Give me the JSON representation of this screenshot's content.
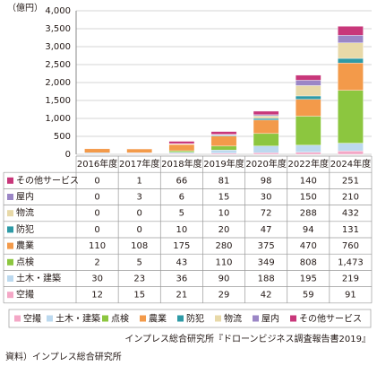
{
  "chart_data": {
    "type": "stacked_bar",
    "y_label": "（億円）",
    "categories": [
      "2016年度",
      "2017年度",
      "2018年度",
      "2019年度",
      "2020年度",
      "2022年度",
      "2024年度"
    ],
    "series": [
      {
        "name": "空撮",
        "color": "#f4a7c6",
        "values": [
          12,
          15,
          21,
          29,
          42,
          59,
          91
        ]
      },
      {
        "name": "土木・建築",
        "color": "#bcd9ef",
        "values": [
          30,
          23,
          36,
          90,
          188,
          195,
          219
        ]
      },
      {
        "name": "点検",
        "color": "#8cc63f",
        "values": [
          2,
          5,
          43,
          110,
          349,
          808,
          1473
        ],
        "value_labels": [
          "2",
          "5",
          "43",
          "110",
          "349",
          "808",
          "1,473"
        ]
      },
      {
        "name": "農業",
        "color": "#f39a4a",
        "values": [
          110,
          108,
          175,
          280,
          375,
          470,
          760
        ]
      },
      {
        "name": "防犯",
        "color": "#2e9aa6",
        "values": [
          0,
          0,
          10,
          20,
          47,
          94,
          131
        ]
      },
      {
        "name": "物流",
        "color": "#e8d9a8",
        "values": [
          0,
          0,
          5,
          10,
          72,
          288,
          432
        ]
      },
      {
        "name": "屋内",
        "color": "#9b86c6",
        "values": [
          0,
          3,
          6,
          15,
          30,
          150,
          210
        ]
      },
      {
        "name": "その他サービス",
        "color": "#c8377a",
        "values": [
          0,
          1,
          66,
          81,
          98,
          140,
          251
        ]
      }
    ],
    "ylim": [
      0,
      4000
    ],
    "yticks": [
      0,
      500,
      {
        "value": 1000,
        "label": "1,000"
      },
      {
        "value": 1500,
        "label": "1,500"
      },
      {
        "value": 2000,
        "label": "2,000"
      },
      {
        "value": 2500,
        "label": "2,500"
      },
      {
        "value": 3000,
        "label": "3,000"
      },
      {
        "value": 3500,
        "label": "3,500"
      },
      {
        "value": 4000,
        "label": "4,000"
      }
    ],
    "grid": true,
    "note": "インプレス総合研究所『ドローンビジネス調査報告書2019』",
    "source": "資料）インプレス総合研究所"
  }
}
